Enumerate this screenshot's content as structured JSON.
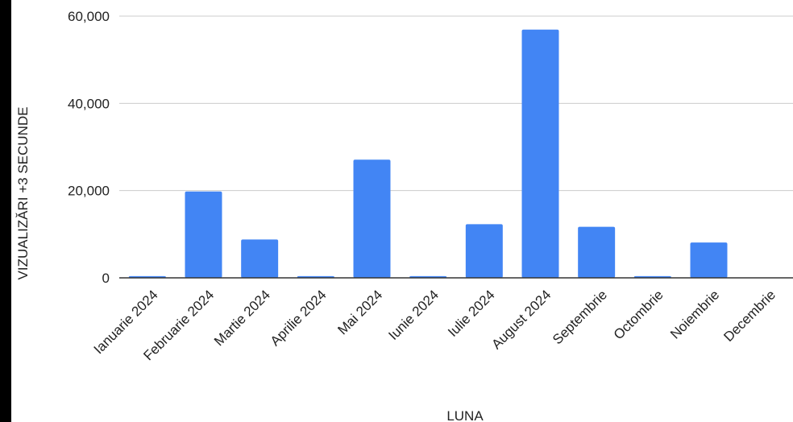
{
  "chart_data": {
    "type": "bar",
    "title": "",
    "xlabel": "LUNA",
    "ylabel": "VIZUALIZĂRI +3 SECUNDE",
    "categories": [
      "Ianuarie 2024",
      "Februarie 2024",
      "Martie 2024",
      "Aprilie 2024",
      "Mai 2024",
      "Iunie 2024",
      "Iulie 2024",
      "August 2024",
      "Septembrie",
      "Octombrie",
      "Noiembrie",
      "Decembrie"
    ],
    "values": [
      400,
      19800,
      8800,
      400,
      27100,
      400,
      12300,
      56900,
      11700,
      400,
      8100,
      0
    ],
    "ylim": [
      0,
      60000
    ],
    "yticks": [
      0,
      20000,
      40000,
      60000
    ],
    "ytick_labels": [
      "0",
      "20,000",
      "40,000",
      "60,000"
    ],
    "grid": true,
    "legend": "none",
    "colors": {
      "bar": "#4285f4",
      "grid": "#cccccc",
      "axis": "#333333",
      "text": "#222222",
      "background": "#ffffff"
    }
  }
}
